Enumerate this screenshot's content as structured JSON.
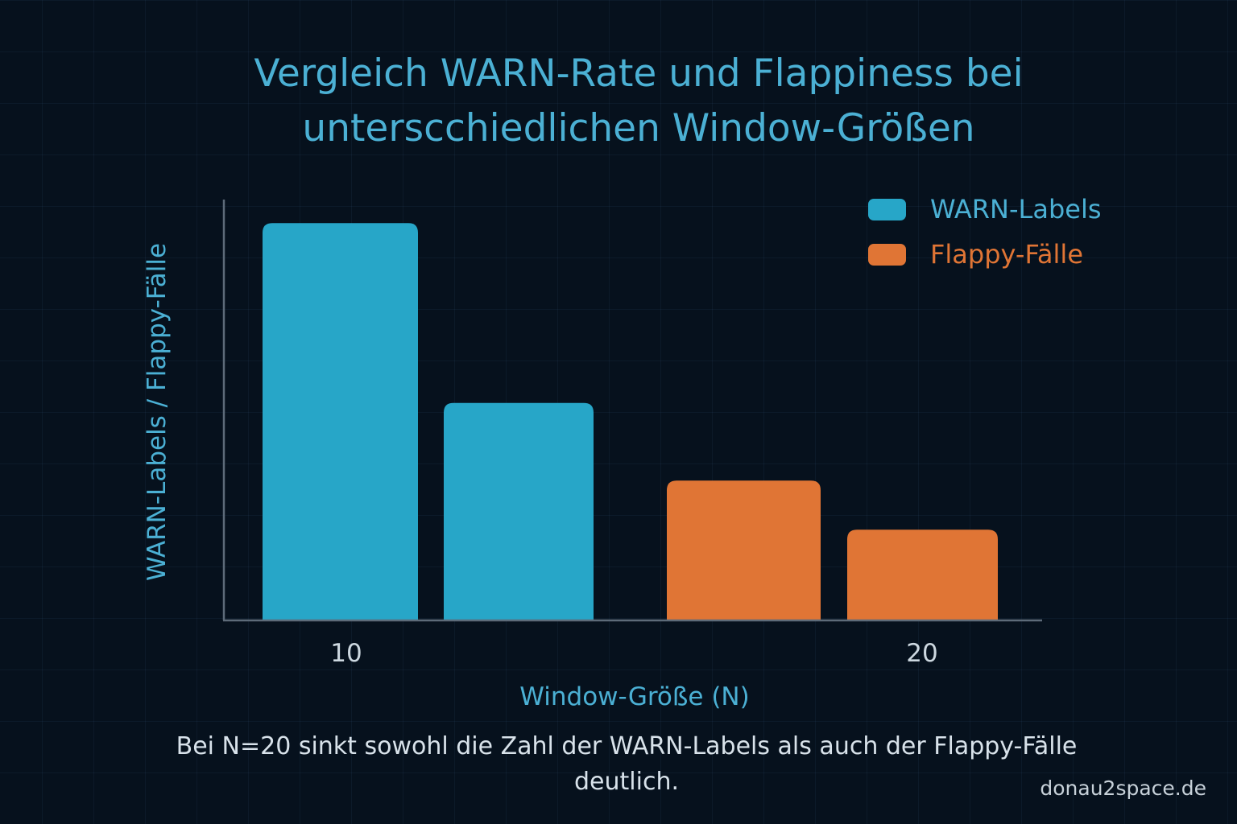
{
  "page": {
    "title": "Vergleich WARN-Rate und Flappiness bei\nunterscchiedlichen Window-Größen",
    "caption": "Bei N=20 sinkt sowohl die Zahl der WARN-Labels als auch der Flappy-Fälle deutlich.",
    "footer": "donau2space.de"
  },
  "legend": [
    {
      "label": "WARN-Labels",
      "color": "#27a6c8"
    },
    {
      "label": "Flappy-Fälle",
      "color": "#e07535"
    }
  ],
  "colors": {
    "background": "#06111d",
    "title": "#4bb0d4",
    "axis_label": "#4bb0d4",
    "tick_label": "#cdd8e0",
    "axis_line": "#5d6b79",
    "warn": "#27a6c8",
    "flappy": "#e07535"
  },
  "chart_data": {
    "type": "bar",
    "title": "Vergleich WARN-Rate und Flappiness bei unterscchiedlichen Window-Größen",
    "xlabel": "Window-Größe (N)",
    "ylabel": "WARN-Labels / Flappy-Fälle",
    "ylim": [
      0,
      100
    ],
    "grid": false,
    "legend_position": "top-right",
    "tick_labels": [
      "10",
      "20"
    ],
    "bars": [
      {
        "series": "WARN-Labels",
        "value": 97
      },
      {
        "series": "WARN-Labels",
        "value": 53
      },
      {
        "series": "Flappy-Fälle",
        "value": 34
      },
      {
        "series": "Flappy-Fälle",
        "value": 22
      }
    ],
    "annotation": "Values estimated; no numeric y-axis ticks are shown in the chart."
  }
}
